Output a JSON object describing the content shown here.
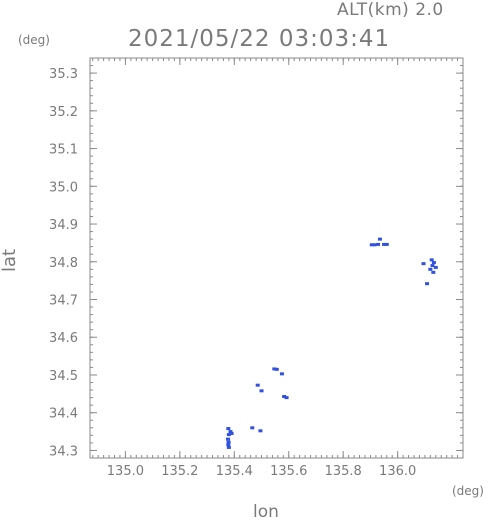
{
  "header": {
    "altitude_label": "ALT(km) 2.0",
    "timestamp": "2021/05/22 03:03:41"
  },
  "chart_data": {
    "type": "scatter",
    "title": "2021/05/22 03:03:41",
    "subtitle": "ALT(km) 2.0",
    "xlabel": "lon",
    "ylabel": "lat",
    "x_unit": "(deg)",
    "y_unit": "(deg)",
    "xlim": [
      134.87,
      136.24
    ],
    "ylim": [
      34.28,
      35.34
    ],
    "x_ticks": [
      "135.0",
      "135.2",
      "135.4",
      "135.6",
      "135.8",
      "136.0"
    ],
    "y_ticks": [
      "34.3",
      "34.4",
      "34.5",
      "34.6",
      "34.7",
      "34.8",
      "34.9",
      "35.0",
      "35.1",
      "35.2",
      "35.3"
    ],
    "grid": false,
    "color": "#3050e0",
    "points": [
      {
        "x": 135.378,
        "y": 34.358
      },
      {
        "x": 135.386,
        "y": 34.35
      },
      {
        "x": 135.38,
        "y": 34.342
      },
      {
        "x": 135.39,
        "y": 34.345
      },
      {
        "x": 135.377,
        "y": 34.33
      },
      {
        "x": 135.379,
        "y": 34.322
      },
      {
        "x": 135.378,
        "y": 34.315
      },
      {
        "x": 135.38,
        "y": 34.308
      },
      {
        "x": 135.466,
        "y": 34.36
      },
      {
        "x": 135.496,
        "y": 34.352
      },
      {
        "x": 135.486,
        "y": 34.473
      },
      {
        "x": 135.5,
        "y": 34.458
      },
      {
        "x": 135.547,
        "y": 34.516
      },
      {
        "x": 135.556,
        "y": 34.515
      },
      {
        "x": 135.575,
        "y": 34.503
      },
      {
        "x": 135.583,
        "y": 34.443
      },
      {
        "x": 135.592,
        "y": 34.44
      },
      {
        "x": 135.905,
        "y": 34.845
      },
      {
        "x": 135.915,
        "y": 34.845
      },
      {
        "x": 135.928,
        "y": 34.846
      },
      {
        "x": 135.935,
        "y": 34.86
      },
      {
        "x": 135.95,
        "y": 34.846
      },
      {
        "x": 135.96,
        "y": 34.846
      },
      {
        "x": 136.095,
        "y": 34.795
      },
      {
        "x": 136.125,
        "y": 34.805
      },
      {
        "x": 136.133,
        "y": 34.798
      },
      {
        "x": 136.128,
        "y": 34.79
      },
      {
        "x": 136.14,
        "y": 34.785
      },
      {
        "x": 136.12,
        "y": 34.78
      },
      {
        "x": 136.131,
        "y": 34.772
      },
      {
        "x": 136.108,
        "y": 34.742
      }
    ]
  }
}
